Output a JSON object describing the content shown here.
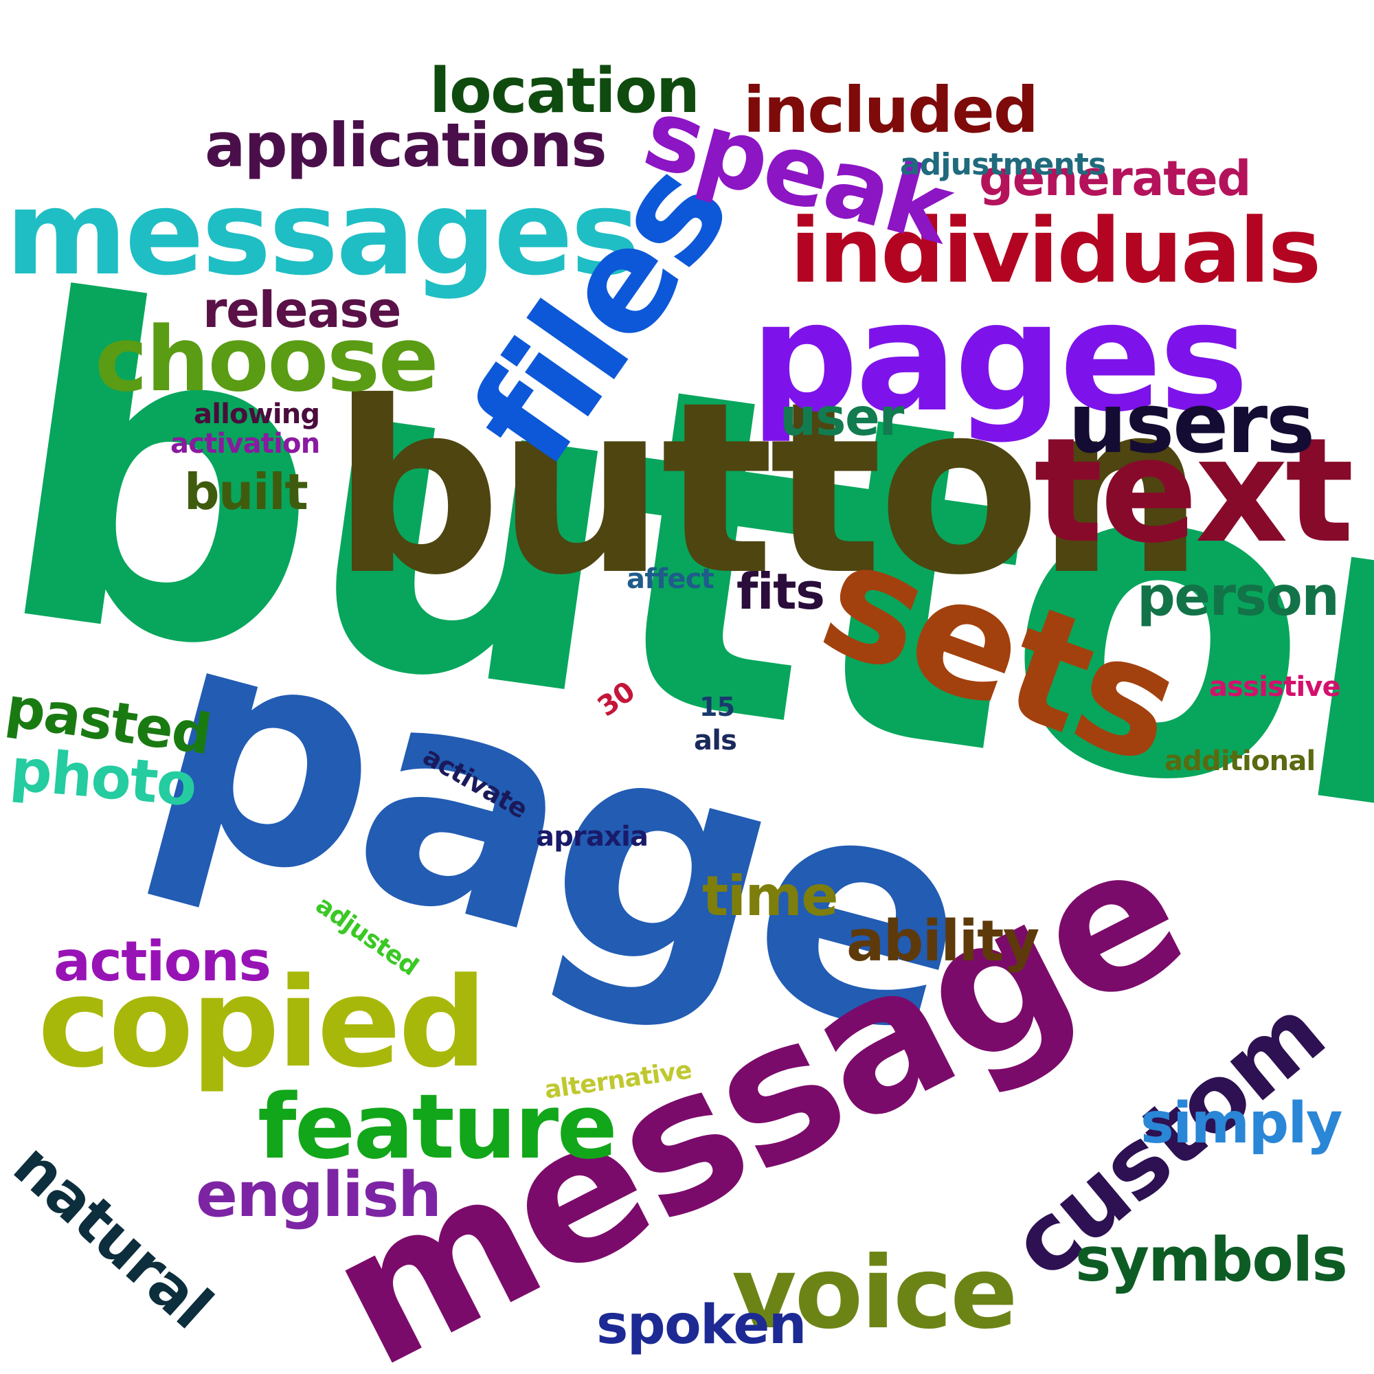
{
  "words": [
    {
      "text": "buttons",
      "color": "#07a65c"
    },
    {
      "text": "button",
      "color": "#4e4510"
    },
    {
      "text": "page",
      "color": "#225cb3"
    },
    {
      "text": "message",
      "color": "#7b0b6a"
    },
    {
      "text": "pages",
      "color": "#7d13ea"
    },
    {
      "text": "messages",
      "color": "#1fbec4"
    },
    {
      "text": "files",
      "color": "#0c58d8"
    },
    {
      "text": "text",
      "color": "#870a2b"
    },
    {
      "text": "sets",
      "color": "#a2410e"
    },
    {
      "text": "individuals",
      "color": "#b30521"
    },
    {
      "text": "speak",
      "color": "#8c15c4"
    },
    {
      "text": "copied",
      "color": "#a8b80a"
    },
    {
      "text": "choose",
      "color": "#5a9c14"
    },
    {
      "text": "users",
      "color": "#150c33"
    },
    {
      "text": "custom",
      "color": "#2d1152"
    },
    {
      "text": "voice",
      "color": "#6c8416"
    },
    {
      "text": "feature",
      "color": "#12a61a"
    },
    {
      "text": "applications",
      "color": "#4a0f4a"
    },
    {
      "text": "location",
      "color": "#0f4b0f"
    },
    {
      "text": "included",
      "color": "#7e0a0a"
    },
    {
      "text": "generated",
      "color": "#b4135c"
    },
    {
      "text": "person",
      "color": "#137348"
    },
    {
      "text": "symbols",
      "color": "#0d5c24"
    },
    {
      "text": "english",
      "color": "#7d24a4"
    },
    {
      "text": "natural",
      "color": "#0c2e3d"
    },
    {
      "text": "simply",
      "color": "#2a86d6"
    },
    {
      "text": "spoken",
      "color": "#1d2a94"
    },
    {
      "text": "actions",
      "color": "#9813b6"
    },
    {
      "text": "ability",
      "color": "#5e3a0b"
    },
    {
      "text": "release",
      "color": "#5a1147"
    },
    {
      "text": "time",
      "color": "#7e7e0c"
    },
    {
      "text": "photo",
      "color": "#24cca0"
    },
    {
      "text": "pasted",
      "color": "#1a7a12"
    },
    {
      "text": "user",
      "color": "#127b50"
    },
    {
      "text": "built",
      "color": "#3f5c0e"
    },
    {
      "text": "fits",
      "color": "#2a0d3a"
    },
    {
      "text": "adjustments",
      "color": "#1f6a7d"
    },
    {
      "text": "allowing",
      "color": "#4a0d3d"
    },
    {
      "text": "activation",
      "color": "#8a1aa0"
    },
    {
      "text": "affect",
      "color": "#1f5c8c"
    },
    {
      "text": "assistive",
      "color": "#d4106c"
    },
    {
      "text": "additional",
      "color": "#5a6a10"
    },
    {
      "text": "activate",
      "color": "#1a1a5a"
    },
    {
      "text": "apraxia",
      "color": "#1a1a6a"
    },
    {
      "text": "adjusted",
      "color": "#3ac824"
    },
    {
      "text": "alternative",
      "color": "#c0c830"
    },
    {
      "text": "30",
      "color": "#c4163a"
    },
    {
      "text": "15",
      "color": "#1a3a6e"
    },
    {
      "text": "als",
      "color": "#1a2a5a"
    }
  ]
}
